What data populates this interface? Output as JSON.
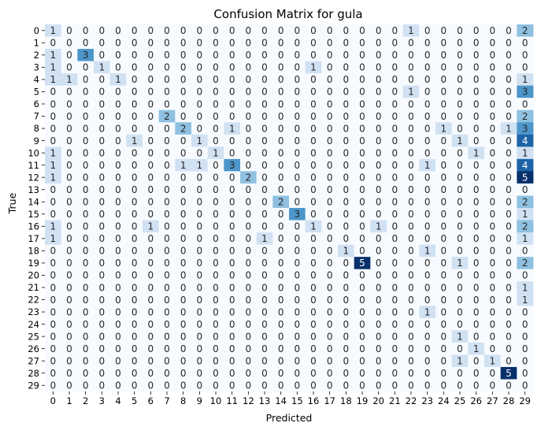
{
  "chart_data": {
    "type": "heatmap",
    "title": "Confusion Matrix for gula",
    "xlabel": "Predicted",
    "ylabel": "True",
    "x_tick_labels": [
      "0",
      "1",
      "2",
      "3",
      "4",
      "5",
      "6",
      "7",
      "8",
      "9",
      "10",
      "11",
      "12",
      "13",
      "14",
      "15",
      "16",
      "17",
      "18",
      "19",
      "20",
      "21",
      "22",
      "23",
      "24",
      "25",
      "26",
      "27",
      "28",
      "29"
    ],
    "y_tick_labels": [
      "0",
      "1",
      "2",
      "3",
      "4",
      "5",
      "6",
      "7",
      "8",
      "9",
      "10",
      "11",
      "12",
      "13",
      "14",
      "15",
      "16",
      "17",
      "18",
      "19",
      "20",
      "21",
      "22",
      "23",
      "24",
      "25",
      "26",
      "27",
      "28",
      "29"
    ],
    "colormap": "Blues",
    "value_range": [
      0,
      5
    ],
    "colors": {
      "scale": [
        "#f7fbff",
        "#c6dbef",
        "#6baed6",
        "#2171b5",
        "#08306b"
      ],
      "text_dark": "#262626",
      "text_light": "#ffffff"
    },
    "matrix": [
      [
        1,
        0,
        0,
        0,
        0,
        0,
        0,
        0,
        0,
        0,
        0,
        0,
        0,
        0,
        0,
        0,
        0,
        0,
        0,
        0,
        0,
        0,
        1,
        0,
        0,
        0,
        0,
        0,
        0,
        2
      ],
      [
        0,
        0,
        0,
        0,
        0,
        0,
        0,
        0,
        0,
        0,
        0,
        0,
        0,
        0,
        0,
        0,
        0,
        0,
        0,
        0,
        0,
        0,
        0,
        0,
        0,
        0,
        0,
        0,
        0,
        0
      ],
      [
        1,
        0,
        3,
        0,
        0,
        0,
        0,
        0,
        0,
        0,
        0,
        0,
        0,
        0,
        0,
        0,
        0,
        0,
        0,
        0,
        0,
        0,
        0,
        0,
        0,
        0,
        0,
        0,
        0,
        0
      ],
      [
        1,
        0,
        0,
        1,
        0,
        0,
        0,
        0,
        0,
        0,
        0,
        0,
        0,
        0,
        0,
        0,
        1,
        0,
        0,
        0,
        0,
        0,
        0,
        0,
        0,
        0,
        0,
        0,
        0,
        0
      ],
      [
        1,
        1,
        0,
        0,
        1,
        0,
        0,
        0,
        0,
        0,
        0,
        0,
        0,
        0,
        0,
        0,
        0,
        0,
        0,
        0,
        0,
        0,
        0,
        0,
        0,
        0,
        0,
        0,
        0,
        1
      ],
      [
        0,
        0,
        0,
        0,
        0,
        0,
        0,
        0,
        0,
        0,
        0,
        0,
        0,
        0,
        0,
        0,
        0,
        0,
        0,
        0,
        0,
        0,
        1,
        0,
        0,
        0,
        0,
        0,
        0,
        3
      ],
      [
        0,
        0,
        0,
        0,
        0,
        0,
        0,
        0,
        0,
        0,
        0,
        0,
        0,
        0,
        0,
        0,
        0,
        0,
        0,
        0,
        0,
        0,
        0,
        0,
        0,
        0,
        0,
        0,
        0,
        0
      ],
      [
        0,
        0,
        0,
        0,
        0,
        0,
        0,
        2,
        0,
        0,
        0,
        0,
        0,
        0,
        0,
        0,
        0,
        0,
        0,
        0,
        0,
        0,
        0,
        0,
        0,
        0,
        0,
        0,
        0,
        2
      ],
      [
        0,
        0,
        0,
        0,
        0,
        0,
        0,
        0,
        2,
        0,
        0,
        1,
        0,
        0,
        0,
        0,
        0,
        0,
        0,
        0,
        0,
        0,
        0,
        0,
        1,
        0,
        0,
        0,
        1,
        3
      ],
      [
        0,
        0,
        0,
        0,
        0,
        1,
        0,
        0,
        0,
        1,
        0,
        0,
        0,
        0,
        0,
        0,
        0,
        0,
        0,
        0,
        0,
        0,
        0,
        0,
        0,
        1,
        0,
        0,
        0,
        4
      ],
      [
        1,
        0,
        0,
        0,
        0,
        0,
        0,
        0,
        0,
        0,
        1,
        0,
        0,
        0,
        0,
        0,
        0,
        0,
        0,
        0,
        0,
        0,
        0,
        0,
        0,
        0,
        1,
        0,
        0,
        1
      ],
      [
        1,
        0,
        0,
        0,
        0,
        0,
        0,
        0,
        1,
        1,
        0,
        3,
        0,
        0,
        0,
        0,
        0,
        0,
        0,
        0,
        0,
        0,
        0,
        1,
        0,
        0,
        0,
        0,
        0,
        4
      ],
      [
        1,
        0,
        0,
        0,
        0,
        0,
        0,
        0,
        0,
        0,
        0,
        0,
        2,
        0,
        0,
        0,
        0,
        0,
        0,
        0,
        0,
        0,
        0,
        0,
        0,
        0,
        0,
        0,
        0,
        5
      ],
      [
        0,
        0,
        0,
        0,
        0,
        0,
        0,
        0,
        0,
        0,
        0,
        0,
        0,
        0,
        0,
        0,
        0,
        0,
        0,
        0,
        0,
        0,
        0,
        0,
        0,
        0,
        0,
        0,
        0,
        0
      ],
      [
        0,
        0,
        0,
        0,
        0,
        0,
        0,
        0,
        0,
        0,
        0,
        0,
        0,
        0,
        2,
        0,
        0,
        0,
        0,
        0,
        0,
        0,
        0,
        0,
        0,
        0,
        0,
        0,
        0,
        2
      ],
      [
        0,
        0,
        0,
        0,
        0,
        0,
        0,
        0,
        0,
        0,
        0,
        0,
        0,
        0,
        0,
        3,
        0,
        0,
        0,
        0,
        0,
        0,
        0,
        0,
        0,
        0,
        0,
        0,
        0,
        1
      ],
      [
        1,
        0,
        0,
        0,
        0,
        0,
        1,
        0,
        0,
        0,
        0,
        0,
        0,
        0,
        0,
        0,
        1,
        0,
        0,
        0,
        1,
        0,
        0,
        0,
        0,
        0,
        0,
        0,
        0,
        2
      ],
      [
        1,
        0,
        0,
        0,
        0,
        0,
        0,
        0,
        0,
        0,
        0,
        0,
        0,
        1,
        0,
        0,
        0,
        0,
        0,
        0,
        0,
        0,
        0,
        0,
        0,
        0,
        0,
        0,
        0,
        1
      ],
      [
        0,
        0,
        0,
        0,
        0,
        0,
        0,
        0,
        0,
        0,
        0,
        0,
        0,
        0,
        0,
        0,
        0,
        0,
        1,
        0,
        0,
        0,
        0,
        1,
        0,
        0,
        0,
        0,
        0,
        0
      ],
      [
        0,
        0,
        0,
        0,
        0,
        0,
        0,
        0,
        0,
        0,
        0,
        0,
        0,
        0,
        0,
        0,
        0,
        0,
        0,
        5,
        0,
        0,
        0,
        0,
        0,
        1,
        0,
        0,
        0,
        2
      ],
      [
        0,
        0,
        0,
        0,
        0,
        0,
        0,
        0,
        0,
        0,
        0,
        0,
        0,
        0,
        0,
        0,
        0,
        0,
        0,
        0,
        0,
        0,
        0,
        0,
        0,
        0,
        0,
        0,
        0,
        0
      ],
      [
        0,
        0,
        0,
        0,
        0,
        0,
        0,
        0,
        0,
        0,
        0,
        0,
        0,
        0,
        0,
        0,
        0,
        0,
        0,
        0,
        0,
        0,
        0,
        0,
        0,
        0,
        0,
        0,
        0,
        1
      ],
      [
        0,
        0,
        0,
        0,
        0,
        0,
        0,
        0,
        0,
        0,
        0,
        0,
        0,
        0,
        0,
        0,
        0,
        0,
        0,
        0,
        0,
        0,
        0,
        0,
        0,
        0,
        0,
        0,
        0,
        1
      ],
      [
        0,
        0,
        0,
        0,
        0,
        0,
        0,
        0,
        0,
        0,
        0,
        0,
        0,
        0,
        0,
        0,
        0,
        0,
        0,
        0,
        0,
        0,
        0,
        1,
        0,
        0,
        0,
        0,
        0,
        0
      ],
      [
        0,
        0,
        0,
        0,
        0,
        0,
        0,
        0,
        0,
        0,
        0,
        0,
        0,
        0,
        0,
        0,
        0,
        0,
        0,
        0,
        0,
        0,
        0,
        0,
        0,
        0,
        0,
        0,
        0,
        0
      ],
      [
        0,
        0,
        0,
        0,
        0,
        0,
        0,
        0,
        0,
        0,
        0,
        0,
        0,
        0,
        0,
        0,
        0,
        0,
        0,
        0,
        0,
        0,
        0,
        0,
        0,
        1,
        0,
        0,
        0,
        0
      ],
      [
        0,
        0,
        0,
        0,
        0,
        0,
        0,
        0,
        0,
        0,
        0,
        0,
        0,
        0,
        0,
        0,
        0,
        0,
        0,
        0,
        0,
        0,
        0,
        0,
        0,
        0,
        1,
        0,
        0,
        0
      ],
      [
        0,
        0,
        0,
        0,
        0,
        0,
        0,
        0,
        0,
        0,
        0,
        0,
        0,
        0,
        0,
        0,
        0,
        0,
        0,
        0,
        0,
        0,
        0,
        0,
        0,
        1,
        0,
        1,
        0,
        0
      ],
      [
        0,
        0,
        0,
        0,
        0,
        0,
        0,
        0,
        0,
        0,
        0,
        0,
        0,
        0,
        0,
        0,
        0,
        0,
        0,
        0,
        0,
        0,
        0,
        0,
        0,
        0,
        0,
        0,
        5,
        0
      ],
      [
        0,
        0,
        0,
        0,
        0,
        0,
        0,
        0,
        0,
        0,
        0,
        0,
        0,
        0,
        0,
        0,
        0,
        0,
        0,
        0,
        0,
        0,
        0,
        0,
        0,
        0,
        0,
        0,
        0,
        0
      ]
    ]
  }
}
